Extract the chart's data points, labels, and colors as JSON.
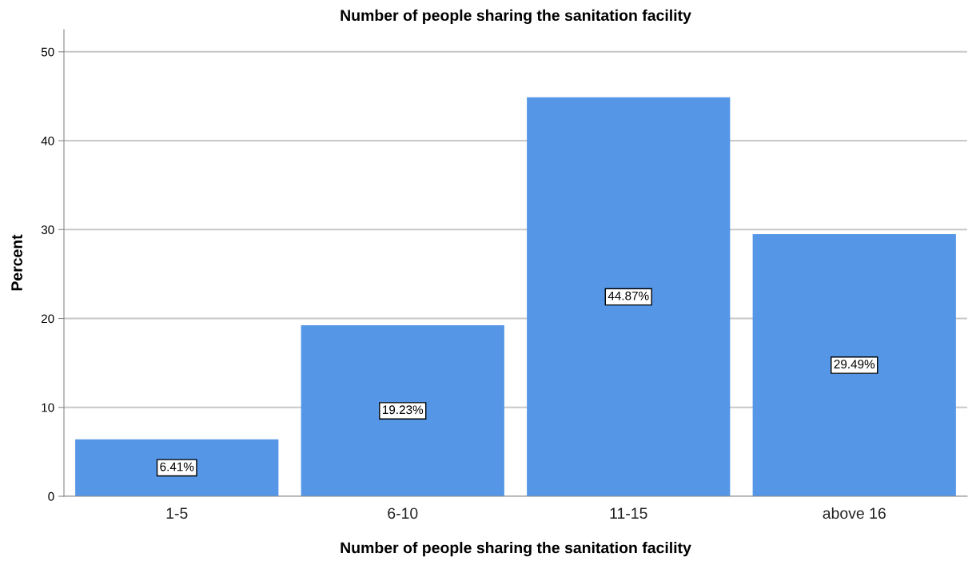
{
  "chart_data": {
    "type": "bar",
    "title": "Number of people sharing the sanitation facility",
    "xlabel": "Number of people sharing the sanitation facility",
    "ylabel": "Percent",
    "categories": [
      "1-5",
      "6-10",
      "11-15",
      "above 16"
    ],
    "values": [
      6.41,
      19.23,
      44.87,
      29.49
    ],
    "value_labels": [
      "6.41%",
      "19.23%",
      "44.87%",
      "29.49%"
    ],
    "color": "#5596e6",
    "ylim": [
      0,
      52.5
    ],
    "yticks": [
      0,
      10,
      20,
      30,
      40,
      50
    ],
    "grid": "y",
    "legend": false
  }
}
